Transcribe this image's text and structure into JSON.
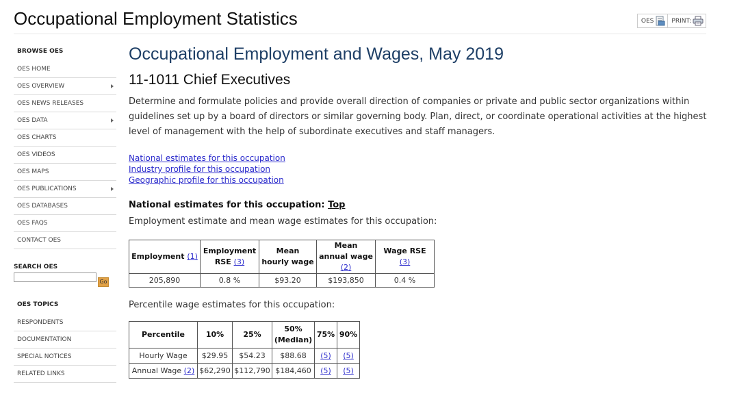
{
  "header": {
    "site_title": "Occupational Employment Statistics",
    "tools": [
      {
        "label": "OES",
        "icon": "document-icon"
      },
      {
        "label": "PRINT:",
        "icon": "printer-icon"
      }
    ]
  },
  "sidebar": {
    "browse_heading": "BROWSE OES",
    "browse_items": [
      {
        "label": "OES HOME",
        "has_submenu": false
      },
      {
        "label": "OES OVERVIEW",
        "has_submenu": true
      },
      {
        "label": "OES NEWS RELEASES",
        "has_submenu": false
      },
      {
        "label": "OES DATA",
        "has_submenu": true
      },
      {
        "label": "OES CHARTS",
        "has_submenu": false
      },
      {
        "label": "OES VIDEOS",
        "has_submenu": false
      },
      {
        "label": "OES MAPS",
        "has_submenu": false
      },
      {
        "label": "OES PUBLICATIONS",
        "has_submenu": true
      },
      {
        "label": "OES DATABASES",
        "has_submenu": false
      },
      {
        "label": "OES FAQS",
        "has_submenu": false
      },
      {
        "label": "CONTACT OES",
        "has_submenu": false
      }
    ],
    "search_label": "SEARCH OES",
    "search_value": "",
    "search_button": "Go",
    "topics_heading": "OES TOPICS",
    "topic_items": [
      {
        "label": "RESPONDENTS"
      },
      {
        "label": "DOCUMENTATION"
      },
      {
        "label": "SPECIAL NOTICES"
      },
      {
        "label": "RELATED LINKS"
      }
    ]
  },
  "main": {
    "page_title": "Occupational Employment and Wages, May 2019",
    "occupation_title": "11-1011 Chief Executives",
    "description": "Determine and formulate policies and provide overall direction of companies or private and public sector organizations within guidelines set up by a board of directors or similar governing body. Plan, direct, or coordinate operational activities at the highest level of management with the help of subordinate executives and staff managers.",
    "links": [
      "National estimates for this occupation",
      "Industry profile for this occupation",
      "Geographic profile for this occupation"
    ],
    "national_heading": "National estimates for this occupation:",
    "top_link": "Top",
    "employment_caption": "Employment estimate and mean wage estimates for this occupation:",
    "employment_table": {
      "headers": [
        {
          "text": "Employment",
          "fn": "(1)"
        },
        {
          "text": "Employment RSE",
          "fn": "(3)"
        },
        {
          "text": "Mean hourly wage",
          "fn": ""
        },
        {
          "text": "Mean annual wage",
          "fn": "(2)"
        },
        {
          "text": "Wage RSE",
          "fn": "(3)"
        }
      ],
      "row": [
        "205,890",
        "0.8 %",
        "$93.20",
        "$193,850",
        "0.4 %"
      ]
    },
    "percentile_caption": "Percentile wage estimates for this occupation:",
    "percentile_table": {
      "headers": [
        "Percentile",
        "10%",
        "25%",
        "50%\n(Median)",
        "75%",
        "90%"
      ],
      "rows": [
        {
          "label": "Hourly Wage",
          "fn": "",
          "cells": [
            {
              "text": "$29.95",
              "link": false
            },
            {
              "text": "$54.23",
              "link": false
            },
            {
              "text": "$88.68",
              "link": false
            },
            {
              "text": "(5)",
              "link": true
            },
            {
              "text": "(5)",
              "link": true
            }
          ]
        },
        {
          "label": "Annual Wage",
          "fn": "(2)",
          "cells": [
            {
              "text": "$62,290",
              "link": false
            },
            {
              "text": "$112,790",
              "link": false
            },
            {
              "text": "$184,460",
              "link": false
            },
            {
              "text": "(5)",
              "link": true
            },
            {
              "text": "(5)",
              "link": true
            }
          ]
        }
      ]
    }
  }
}
